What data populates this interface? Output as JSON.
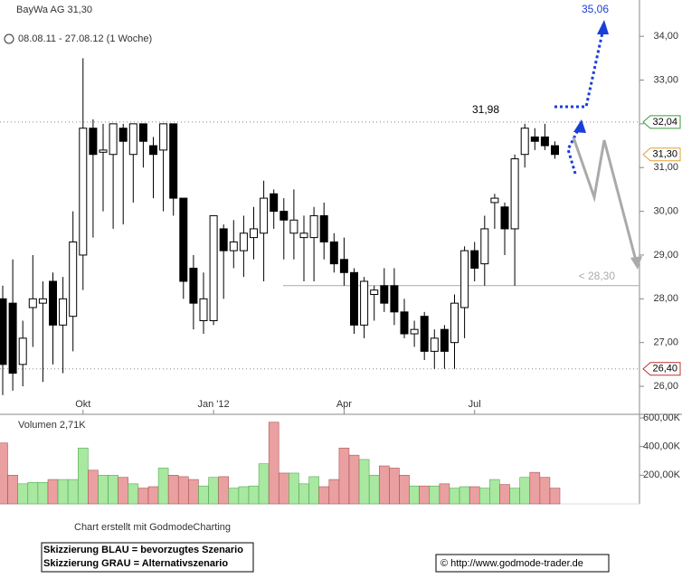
{
  "header": {
    "title": "BayWa AG 31,30",
    "period": "08.08.11 - 27.08.12 (1 Woche)"
  },
  "chart_data": [
    {
      "type": "candlestick",
      "categories": [
        null,
        null,
        null,
        null,
        null,
        null,
        null,
        null,
        "Okt",
        null,
        null,
        null,
        null,
        null,
        null,
        null,
        null,
        null,
        null,
        null,
        null,
        "Jan '12",
        null,
        null,
        null,
        null,
        null,
        null,
        null,
        null,
        null,
        null,
        null,
        null,
        "Apr",
        null,
        null,
        null,
        null,
        null,
        null,
        null,
        null,
        null,
        null,
        null,
        null,
        "Jul",
        null,
        null,
        null,
        null,
        null,
        null,
        null,
        null
      ],
      "open": [
        28.0,
        27.9,
        26.5,
        27.8,
        27.9,
        28.4,
        27.4,
        27.6,
        29.0,
        31.9,
        31.35,
        31.3,
        31.9,
        31.3,
        32.0,
        31.5,
        31.4,
        32.0,
        30.3,
        28.7,
        27.5,
        27.5,
        29.6,
        29.1,
        29.1,
        29.4,
        29.5,
        30.4,
        30.0,
        29.5,
        29.4,
        29.4,
        29.9,
        29.3,
        28.9,
        28.6,
        27.4,
        28.1,
        28.3,
        28.3,
        27.7,
        27.2,
        27.6,
        26.8,
        27.3,
        27.0,
        27.8,
        29.1,
        28.8,
        30.2,
        30.1,
        29.6,
        31.3,
        31.7,
        31.7,
        31.5
      ],
      "high": [
        28.3,
        28.9,
        27.5,
        29.0,
        28.4,
        28.6,
        28.5,
        30.0,
        33.5,
        32.1,
        32.0,
        32.0,
        32.0,
        32.0,
        32.0,
        31.7,
        32.0,
        32.0,
        30.3,
        29.0,
        28.6,
        29.9,
        29.7,
        29.8,
        29.9,
        30.1,
        30.7,
        30.5,
        30.3,
        30.5,
        29.9,
        30.1,
        30.2,
        29.5,
        29.4,
        28.7,
        28.5,
        28.3,
        28.7,
        28.7,
        28.0,
        27.5,
        27.7,
        27.3,
        27.4,
        28.1,
        29.2,
        29.3,
        29.9,
        30.4,
        30.2,
        31.3,
        32.0,
        31.9,
        32.0,
        31.6
      ],
      "low": [
        25.8,
        25.9,
        26.0,
        26.9,
        26.1,
        26.5,
        26.3,
        26.8,
        28.2,
        29.4,
        30.0,
        29.6,
        29.7,
        30.2,
        31.0,
        30.3,
        30.0,
        29.9,
        28.0,
        27.3,
        27.2,
        27.4,
        28.0,
        28.7,
        28.5,
        28.9,
        28.4,
        29.6,
        28.9,
        28.9,
        28.4,
        28.4,
        28.9,
        28.6,
        28.3,
        27.2,
        27.1,
        27.5,
        27.7,
        27.4,
        27.1,
        26.9,
        26.6,
        26.4,
        26.4,
        26.4,
        27.1,
        28.4,
        28.3,
        29.6,
        29.0,
        28.3,
        31.0,
        31.4,
        31.4,
        31.2
      ],
      "close": [
        26.5,
        26.3,
        27.1,
        28.0,
        28.0,
        27.4,
        28.0,
        29.3,
        31.9,
        31.3,
        31.4,
        32.0,
        31.6,
        32.0,
        31.6,
        31.3,
        32.0,
        30.3,
        28.4,
        27.9,
        28.0,
        29.9,
        29.1,
        29.3,
        29.5,
        29.6,
        30.3,
        30.0,
        29.8,
        29.8,
        29.5,
        29.9,
        29.3,
        28.8,
        28.6,
        27.4,
        28.4,
        28.2,
        27.9,
        27.7,
        27.2,
        27.3,
        26.8,
        27.1,
        26.8,
        27.9,
        29.1,
        28.7,
        29.6,
        30.3,
        29.6,
        31.2,
        31.9,
        31.6,
        31.5,
        31.3
      ],
      "up_color": "#ffffff",
      "down_color": "#000000",
      "ylim": [
        25.36,
        34.83
      ],
      "yticks": [
        {
          "value": 26,
          "label": "26,00"
        },
        {
          "value": 27,
          "label": "27,00"
        },
        {
          "value": 28,
          "label": "28,00"
        },
        {
          "value": 29,
          "label": "29,00"
        },
        {
          "value": 30,
          "label": "30,00"
        },
        {
          "value": 31,
          "label": "31,00"
        },
        {
          "value": 32,
          "label": "32,00"
        },
        {
          "value": 33,
          "label": "33,00"
        },
        {
          "value": 34,
          "label": "34,00"
        }
      ],
      "levels": [
        {
          "value": 32.04,
          "label": "32,04",
          "color": "#3a9a3a"
        },
        {
          "value": 31.3,
          "label": "31,30",
          "color": "#e0a030"
        },
        {
          "value": 26.4,
          "label": "26,40",
          "color": "#c03030"
        }
      ],
      "support": {
        "value": 28.3,
        "label": "< 28,30"
      },
      "high_label": {
        "value": 31.98,
        "label": "31,98"
      },
      "target_label": "35,06"
    },
    {
      "type": "bar",
      "title": "Volumen 2,71K",
      "values": [
        425000,
        200000,
        140000,
        150000,
        150000,
        170000,
        170000,
        170000,
        390000,
        235000,
        200000,
        200000,
        185000,
        140000,
        110000,
        120000,
        250000,
        200000,
        190000,
        170000,
        125000,
        185000,
        190000,
        110000,
        120000,
        125000,
        280000,
        570000,
        215000,
        215000,
        140000,
        190000,
        120000,
        170000,
        390000,
        340000,
        310000,
        200000,
        265000,
        250000,
        200000,
        125000,
        125000,
        125000,
        140000,
        110000,
        120000,
        120000,
        110000,
        170000,
        135000,
        110000,
        185000,
        220000,
        185000,
        110000
      ],
      "up_color": "#a8e8a0",
      "down_color": "#eaa0a0",
      "ylim": [
        0,
        600000
      ],
      "yticks": [
        {
          "value": 200000,
          "label": "200,00K"
        },
        {
          "value": 400000,
          "label": "400,00K"
        },
        {
          "value": 600000,
          "label": "600,00K"
        }
      ]
    }
  ],
  "footer": {
    "credit": "Chart erstellt mit GodmodeCharting",
    "legend": [
      "Skizzierung BLAU = bevorzugtes Szenario",
      "Skizzierung GRAU = Alternativszenario"
    ],
    "copyright": "© http://www.godmode-trader.de"
  }
}
